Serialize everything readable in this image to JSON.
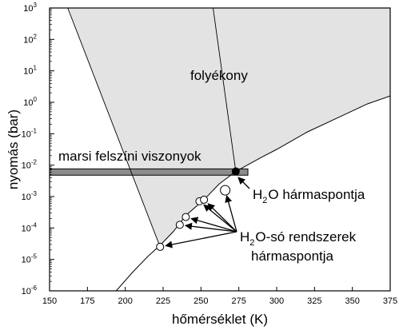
{
  "chart_data": {
    "type": "line",
    "xlabel": "hőmérséklet (K)",
    "ylabel": "nyomás (bar)",
    "xlim": [
      150,
      375
    ],
    "ylim_log10": [
      -6,
      3
    ],
    "y_scale": "log",
    "grid": false,
    "x_ticks": [
      "150",
      "175",
      "200",
      "225",
      "250",
      "275",
      "300",
      "325",
      "350",
      "375"
    ],
    "x_tick_values": [
      150,
      175,
      200,
      225,
      250,
      275,
      300,
      325,
      350,
      375
    ],
    "y_ticks": [
      {
        "base": "10",
        "exp": "-6",
        "log": -6
      },
      {
        "base": "10",
        "exp": "-5",
        "log": -5
      },
      {
        "base": "10",
        "exp": "-4",
        "log": -4
      },
      {
        "base": "10",
        "exp": "-3",
        "log": -3
      },
      {
        "base": "10",
        "exp": "-2",
        "log": -2
      },
      {
        "base": "10",
        "exp": "-1",
        "log": -1
      },
      {
        "base": "10",
        "exp": "0",
        "log": 0
      },
      {
        "base": "10",
        "exp": "1",
        "log": 1
      },
      {
        "base": "10",
        "exp": "2",
        "log": 2
      },
      {
        "base": "10",
        "exp": "3",
        "log": 3
      }
    ],
    "liquid_region_label": "folyékony",
    "liquid_region_color": "#e3e3e3",
    "mars_band": {
      "label": "marsi felszíni viszonyok",
      "t_range": [
        150,
        281
      ],
      "p_range_log10": [
        -2.32,
        -2.12
      ],
      "color": "#8c8c8c"
    },
    "liquid_left_boundary": [
      {
        "t": 162,
        "log_p": 3.0
      },
      {
        "t": 223,
        "log_p": -4.6
      }
    ],
    "liquid_right_boundary_line": [
      {
        "t": 258,
        "log_p": 3.0
      },
      {
        "t": 273,
        "log_p": -2.2
      }
    ],
    "vapor_pressure_curve": [
      {
        "t": 194,
        "log_p": -6.0
      },
      {
        "t": 205,
        "log_p": -5.4
      },
      {
        "t": 215,
        "log_p": -4.9
      },
      {
        "t": 223,
        "log_p": -4.55
      },
      {
        "t": 232,
        "log_p": -4.1
      },
      {
        "t": 240,
        "log_p": -3.6
      },
      {
        "t": 252,
        "log_p": -3.1
      },
      {
        "t": 262,
        "log_p": -2.6
      },
      {
        "t": 273,
        "log_p": -2.2
      },
      {
        "t": 290,
        "log_p": -1.75
      },
      {
        "t": 300,
        "log_p": -1.5
      },
      {
        "t": 320,
        "log_p": -0.95
      },
      {
        "t": 340,
        "log_p": -0.5
      },
      {
        "t": 360,
        "log_p": -0.05
      },
      {
        "t": 375,
        "log_p": 0.2
      }
    ],
    "water_triple_point": {
      "t": 273,
      "log_p": -2.2,
      "label_main": "H",
      "label_sub": "2",
      "label_rest": "O hármaspontja"
    },
    "salt_triple_points": [
      {
        "t": 223,
        "log_p": -4.6
      },
      {
        "t": 236,
        "log_p": -3.9
      },
      {
        "t": 240,
        "log_p": -3.65
      },
      {
        "t": 249,
        "log_p": -3.15
      },
      {
        "t": 252,
        "log_p": -3.1
      },
      {
        "t": 266,
        "log_p": -2.8
      }
    ],
    "salt_label": {
      "main": "H",
      "sub": "2",
      "rest": "O-só rendszerek",
      "line2": "hármaspontja"
    }
  }
}
